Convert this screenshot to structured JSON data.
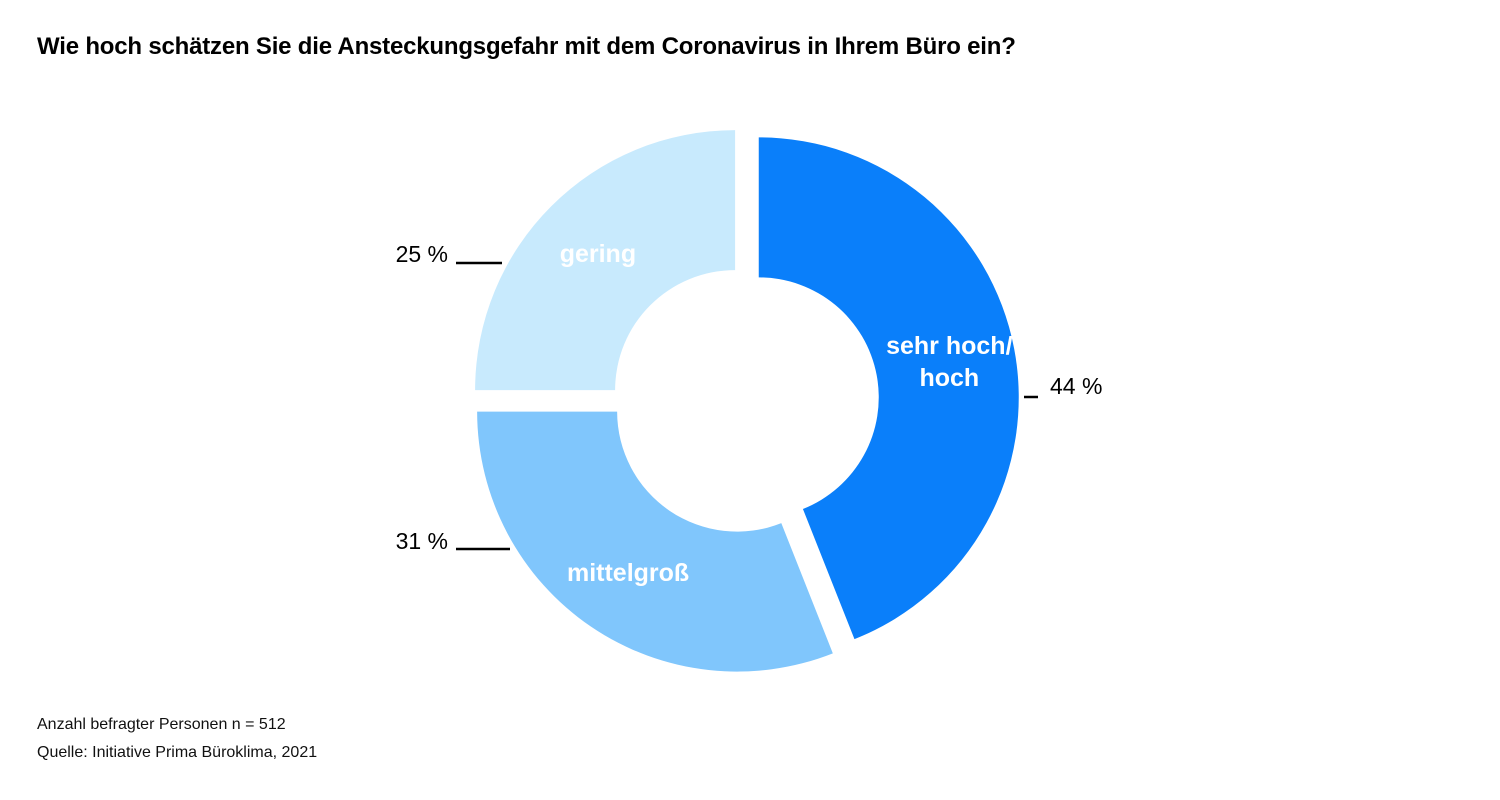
{
  "title": "Wie hoch schätzen Sie die Ansteckungsgefahr mit dem Coronavirus in Ihrem Büro ein?",
  "footnotes": {
    "respondents": "Anzahl befragter Personen n = 512",
    "source": "Quelle: Initiative Prima Büroklima, 2021"
  },
  "chart_data": {
    "type": "pie",
    "variant": "donut",
    "title": "Wie hoch schätzen Sie die Ansteckungsgefahr mit dem Coronavirus in Ihrem Büro ein?",
    "categories": [
      "sehr hoch/ hoch",
      "mittelgroß",
      "gering"
    ],
    "values": [
      44,
      31,
      25
    ],
    "labels": [
      "sehr hoch/\nhoch",
      "mittelgroß",
      "gering"
    ],
    "value_labels": [
      "44 %",
      "31 %",
      "25 %"
    ],
    "colors": [
      "#0a7ffa",
      "#80c6fc",
      "#c8eafd"
    ],
    "label_color": "#ffffff",
    "legend": "none"
  }
}
